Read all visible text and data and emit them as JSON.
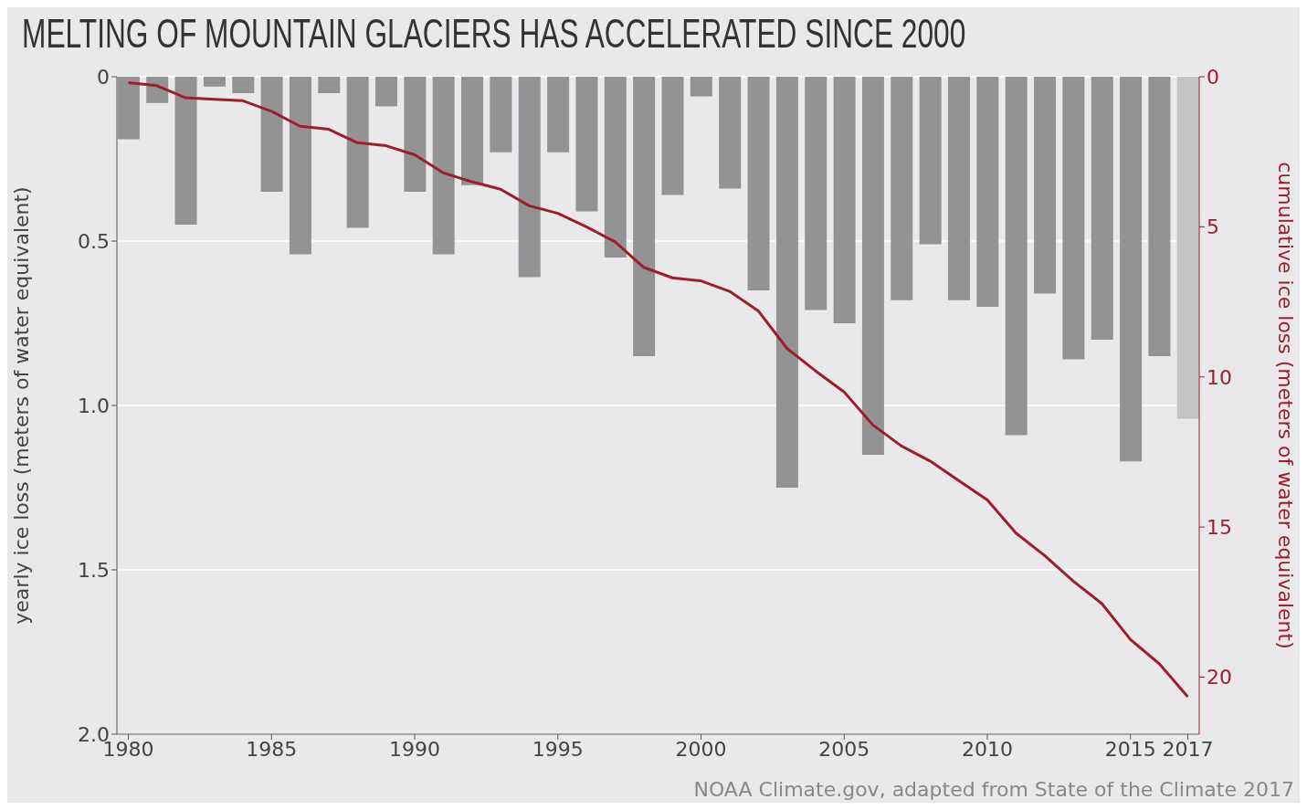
{
  "chart_data": {
    "type": "bar",
    "title": "MELTING OF MOUNTAIN GLACIERS HAS ACCELERATED SINCE 2000",
    "ylabel": "yearly ice loss (meters of water equivalent)",
    "y2label": "cumulative ice loss (meters of water equivalent)",
    "annotations": [
      "NOAA Climate.gov, adapted from State of the Climate 2017"
    ],
    "x": [
      1980,
      1981,
      1982,
      1983,
      1984,
      1985,
      1986,
      1987,
      1988,
      1989,
      1990,
      1991,
      1992,
      1993,
      1994,
      1995,
      1996,
      1997,
      1998,
      1999,
      2000,
      2001,
      2002,
      2003,
      2004,
      2005,
      2006,
      2007,
      2008,
      2009,
      2010,
      2011,
      2012,
      2013,
      2014,
      2015,
      2016,
      2017
    ],
    "series": [
      {
        "colors": [
          "#939395",
          "#939395",
          "#939395",
          "#939395",
          "#939395",
          "#939395",
          "#939395",
          "#939395",
          "#939395",
          "#939395",
          "#939395",
          "#939395",
          "#939395",
          "#939395",
          "#939395",
          "#939395",
          "#939395",
          "#939395",
          "#939395",
          "#939395",
          "#939395",
          "#939395",
          "#939395",
          "#939395",
          "#939395",
          "#939395",
          "#939395",
          "#939395",
          "#939395",
          "#939395",
          "#939395",
          "#939395",
          "#939395",
          "#939395",
          "#939395",
          "#939395",
          "#939395",
          "#c4c4c6"
        ],
        "values": [
          0.19,
          0.08,
          0.45,
          0.03,
          0.05,
          0.35,
          0.54,
          0.05,
          0.46,
          0.09,
          0.35,
          0.54,
          0.33,
          0.23,
          0.61,
          0.23,
          0.41,
          0.55,
          0.85,
          0.36,
          0.06,
          0.34,
          0.65,
          1.25,
          0.71,
          0.75,
          1.15,
          0.68,
          0.51,
          0.68,
          0.7,
          1.09,
          0.66,
          0.86,
          0.8,
          1.17,
          0.85,
          1.04
        ]
      },
      {
        "type": "line",
        "axis": "y2",
        "color": "#a01c30",
        "values": [
          0.2,
          0.3,
          0.7,
          0.75,
          0.8,
          1.15,
          1.65,
          1.75,
          2.2,
          2.3,
          2.6,
          3.2,
          3.5,
          3.75,
          4.3,
          4.55,
          5.0,
          5.5,
          6.35,
          6.7,
          6.8,
          7.15,
          7.8,
          9.05,
          9.8,
          10.5,
          11.6,
          12.3,
          12.8,
          13.45,
          14.1,
          15.2,
          15.95,
          16.8,
          17.55,
          18.75,
          19.55,
          20.65
        ]
      }
    ],
    "xlim": [
      1979.6,
      2017.4
    ],
    "xticks": [
      1980,
      1985,
      1990,
      1995,
      2000,
      2005,
      2010,
      2015,
      2017
    ],
    "ylim": [
      2,
      0
    ],
    "yticks": [
      0,
      0.5,
      {
        "value": 1,
        "label": "1.0"
      },
      1.5,
      {
        "value": 2,
        "label": "2.0"
      }
    ],
    "y2lim": [
      21.9,
      0
    ],
    "y2ticks": [
      0,
      5,
      10,
      15,
      20
    ],
    "grid": "y",
    "marker": "none",
    "line_style": "solid"
  }
}
